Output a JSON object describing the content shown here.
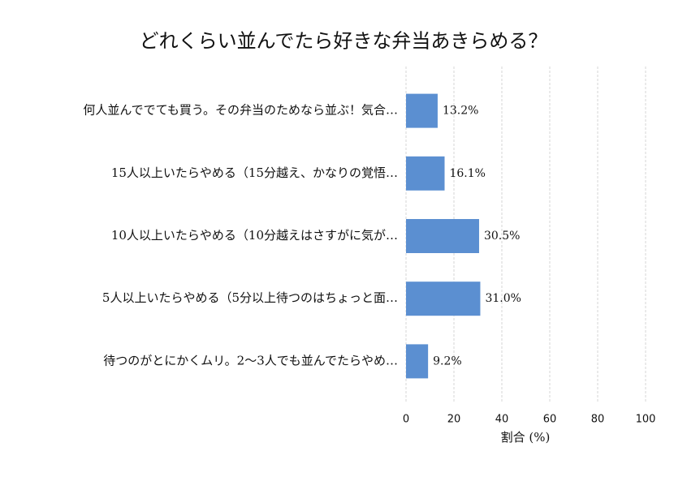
{
  "chart_data": {
    "type": "bar",
    "orientation": "horizontal",
    "title": "どれくらい並んでたら好きな弁当あきらめる？",
    "categories": [
      "何人並んででても買う。その弁当のためなら並ぶ！気合…",
      "15人以上いたらやめる（15分越え、かなりの覚悟…",
      "10人以上いたらやめる（10分越えはさすがに気が…",
      "5人以上いたらやめる（5分以上待つのはちょっと面…",
      "待つのがとにかくムリ。2〜3人でも並んでたらやめ…"
    ],
    "values": [
      13.2,
      16.1,
      30.5,
      31.0,
      9.2
    ],
    "value_labels": [
      "13.2%",
      "16.1%",
      "30.5%",
      "31.0%",
      "9.2%"
    ],
    "color": "#5b8fd1",
    "xlabel": "割合 (%)",
    "xlim": [
      0,
      100
    ],
    "xticks": [
      0,
      20,
      40,
      60,
      80,
      100
    ],
    "grid": true
  }
}
